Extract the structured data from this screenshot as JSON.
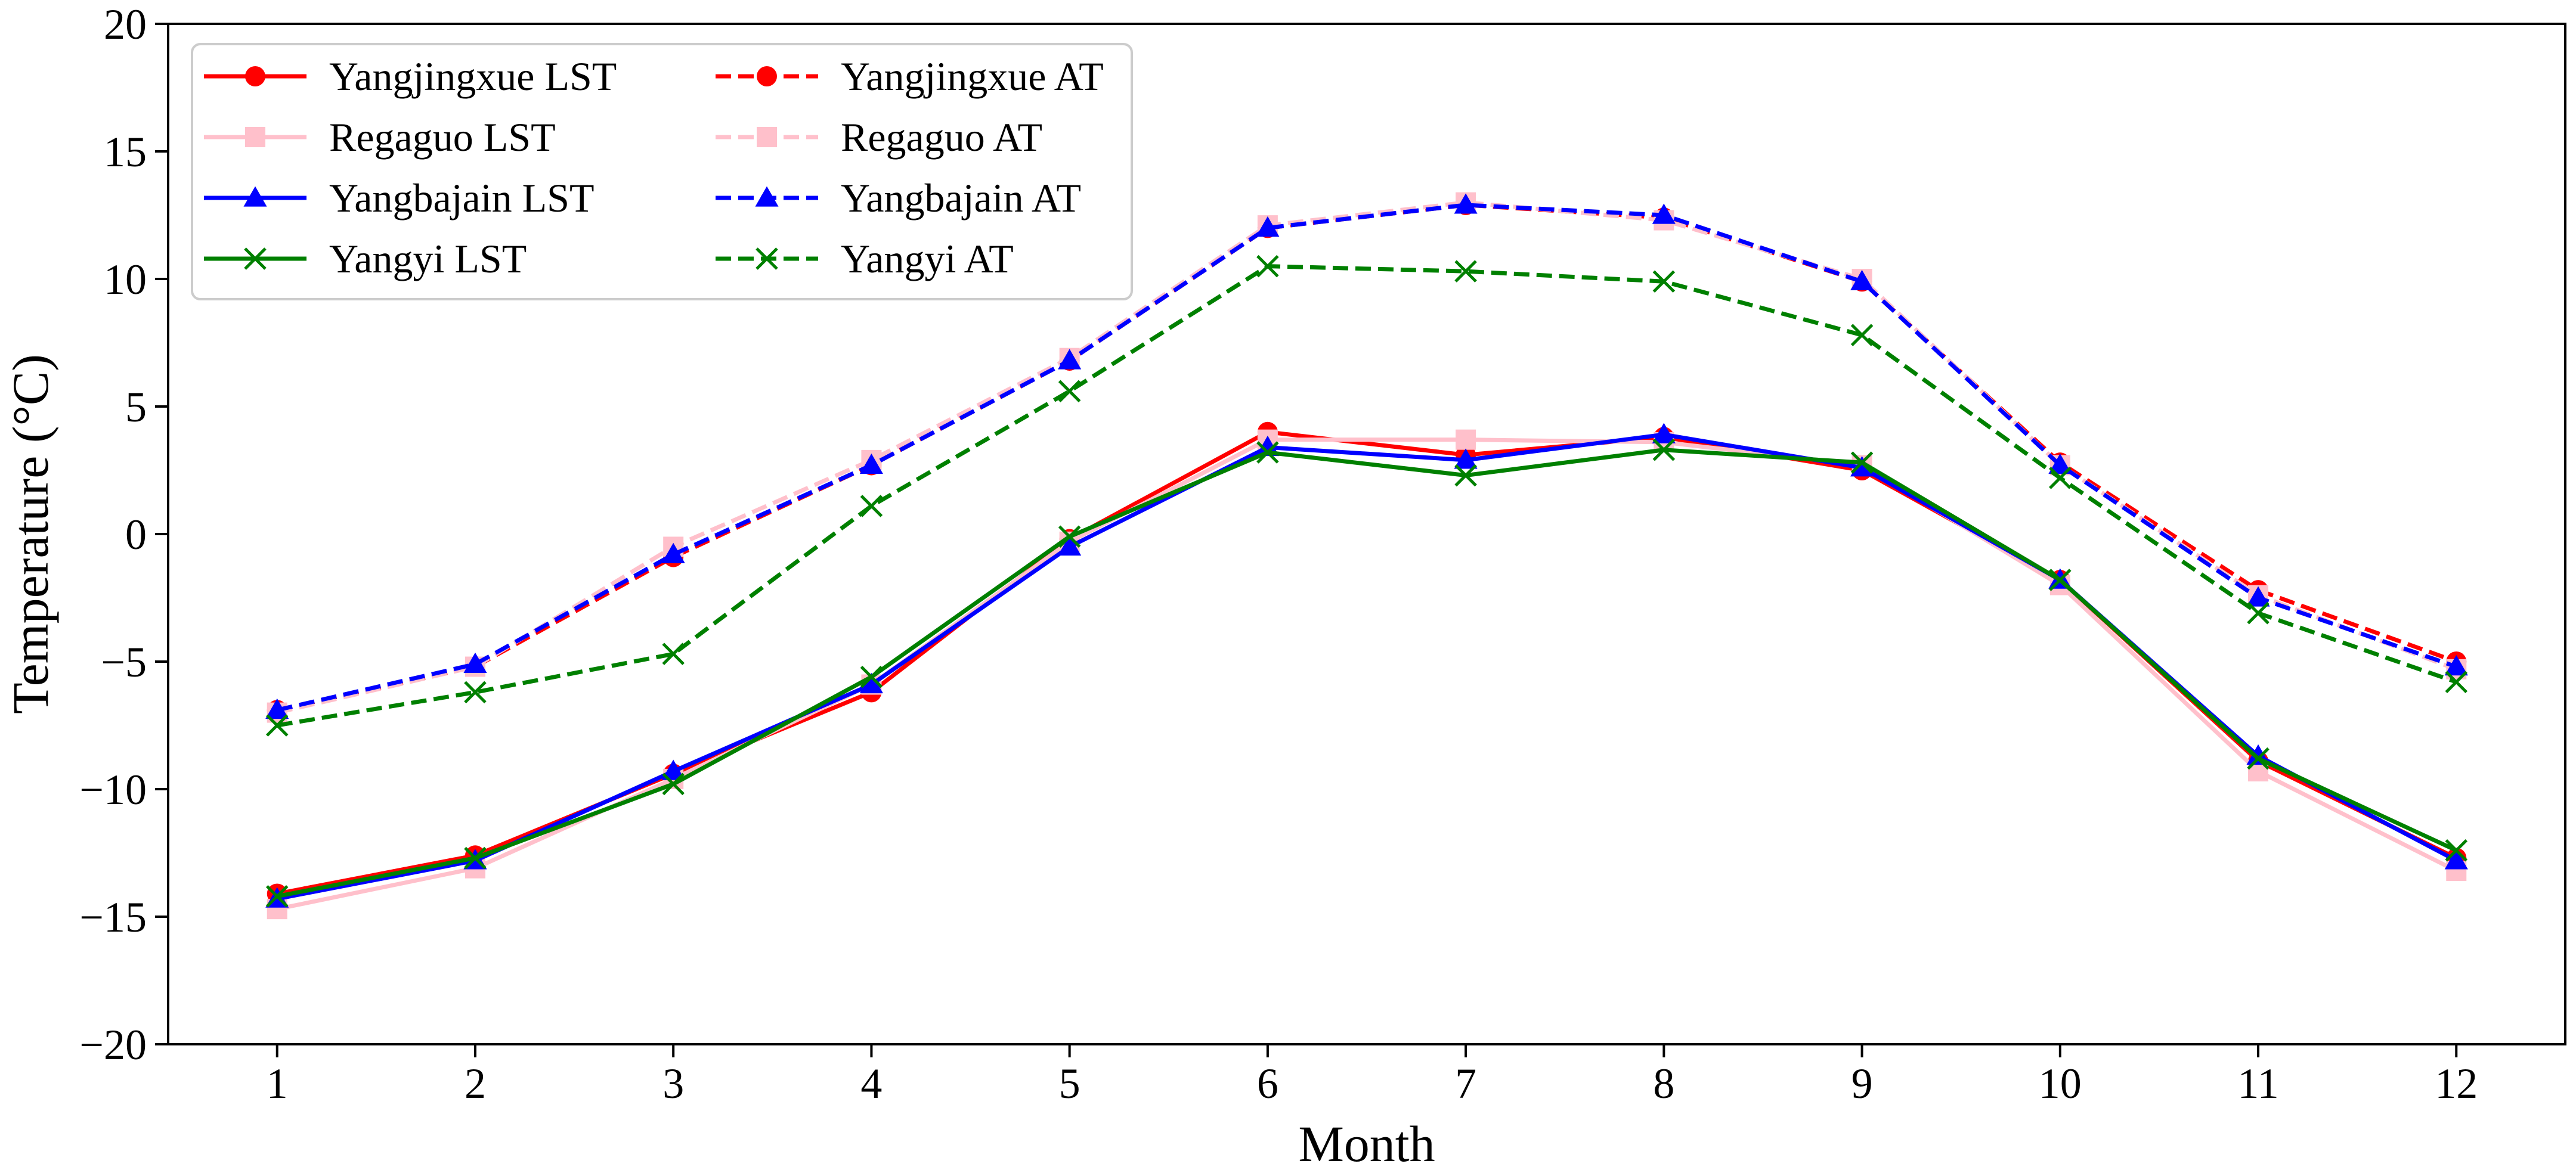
{
  "chart_data": {
    "type": "line",
    "title": "",
    "xlabel": "Month",
    "ylabel": "Temperature (°C)",
    "xlim": [
      0.45,
      12.55
    ],
    "ylim": [
      -20,
      20
    ],
    "categories": [
      1,
      2,
      3,
      4,
      5,
      6,
      7,
      8,
      9,
      10,
      11,
      12
    ],
    "xticks": [
      "1",
      "2",
      "3",
      "4",
      "5",
      "6",
      "7",
      "8",
      "9",
      "10",
      "11",
      "12"
    ],
    "yticks": [
      -20,
      -15,
      -10,
      -5,
      0,
      5,
      10,
      15,
      20
    ],
    "ytick_labels": [
      "−20",
      "−15",
      "−10",
      "−5",
      "0",
      "5",
      "10",
      "15",
      "20"
    ],
    "grid": false,
    "legend": {
      "position": "top-left",
      "columns": 2
    },
    "series": [
      {
        "name": "Yangjingxue LST",
        "color": "#ff0000",
        "style": "solid",
        "marker": "circle",
        "values": [
          -14.1,
          -12.6,
          -9.4,
          -6.2,
          -0.2,
          4.0,
          3.1,
          3.8,
          2.5,
          -1.8,
          -8.9,
          -12.7
        ]
      },
      {
        "name": "Regaguo LST",
        "color": "#ffc0cb",
        "style": "solid",
        "marker": "square",
        "values": [
          -14.7,
          -13.1,
          -9.6,
          -5.9,
          -0.3,
          3.7,
          3.7,
          3.6,
          2.7,
          -2.0,
          -9.3,
          -13.2
        ]
      },
      {
        "name": "Yangbajain LST",
        "color": "#0000ff",
        "style": "solid",
        "marker": "triangle",
        "values": [
          -14.3,
          -12.8,
          -9.3,
          -5.9,
          -0.5,
          3.4,
          2.9,
          3.9,
          2.6,
          -1.8,
          -8.7,
          -12.8
        ]
      },
      {
        "name": "Yangyi LST",
        "color": "#008000",
        "style": "solid",
        "marker": "x",
        "values": [
          -14.2,
          -12.7,
          -9.8,
          -5.6,
          -0.1,
          3.2,
          2.3,
          3.3,
          2.8,
          -1.8,
          -8.8,
          -12.4
        ]
      },
      {
        "name": "Yangjingxue AT",
        "color": "#ff0000",
        "style": "dashed",
        "marker": "circle",
        "values": [
          -6.9,
          -5.2,
          -0.9,
          2.7,
          6.8,
          12.0,
          12.9,
          12.4,
          9.9,
          2.8,
          -2.2,
          -5.0
        ]
      },
      {
        "name": "Regaguo AT",
        "color": "#ffc0cb",
        "style": "dashed",
        "marker": "square",
        "values": [
          -7.0,
          -5.2,
          -0.5,
          2.9,
          6.9,
          12.1,
          13.0,
          12.3,
          10.0,
          2.7,
          -2.4,
          -5.3
        ]
      },
      {
        "name": "Yangbajain AT",
        "color": "#0000ff",
        "style": "dashed",
        "marker": "triangle",
        "values": [
          -6.9,
          -5.1,
          -0.8,
          2.7,
          6.8,
          12.0,
          12.9,
          12.5,
          9.9,
          2.7,
          -2.5,
          -5.2
        ]
      },
      {
        "name": "Yangyi AT",
        "color": "#008000",
        "style": "dashed",
        "marker": "x",
        "values": [
          -7.5,
          -6.2,
          -4.7,
          1.1,
          5.6,
          10.5,
          10.3,
          9.9,
          7.8,
          2.2,
          -3.1,
          -5.8
        ]
      }
    ]
  }
}
